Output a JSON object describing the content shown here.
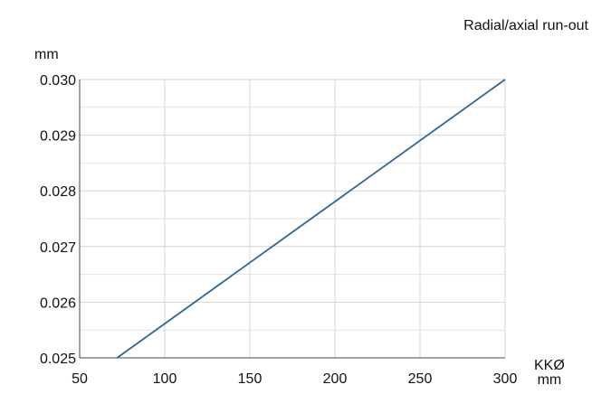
{
  "chart_data": {
    "type": "line",
    "title": "Radial/axial run-out",
    "ylabel": "mm",
    "xlabel_top": "KKØ",
    "xlabel_bottom": "mm",
    "xlim": [
      50,
      300
    ],
    "ylim": [
      0.025,
      0.03
    ],
    "x_ticks": [
      50,
      100,
      150,
      200,
      250,
      300
    ],
    "y_ticks": [
      "0.025",
      "0.026",
      "0.027",
      "0.028",
      "0.029",
      "0.030"
    ],
    "grid": true,
    "series": [
      {
        "x": [
          72,
          300
        ],
        "y": [
          0.025,
          0.03
        ],
        "color": "#2f6494"
      }
    ]
  }
}
